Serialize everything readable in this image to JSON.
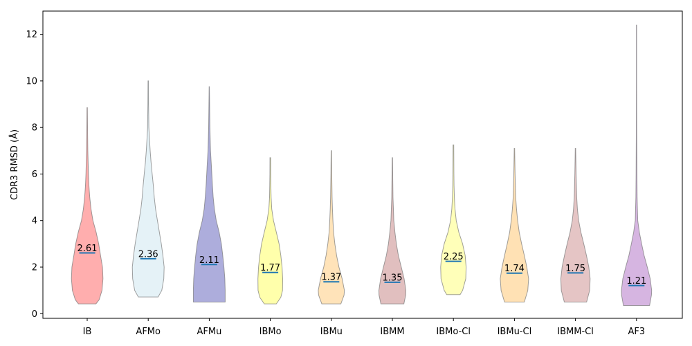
{
  "chart_data": {
    "type": "violin",
    "title": "",
    "xlabel": "",
    "ylabel": "CDR3 RMSD (Å)",
    "ylim": [
      -0.2,
      13.0
    ],
    "yticks": [
      0,
      2,
      4,
      6,
      8,
      10,
      12
    ],
    "grid": false,
    "legend": "none",
    "categories": [
      "IB",
      "AFMo",
      "AFMu",
      "IBMo",
      "IBMu",
      "IBMM",
      "IBMo-Cl",
      "IBMu-Cl",
      "IBMM-Cl",
      "AF3"
    ],
    "series": [
      {
        "category": "IB",
        "color": "#ff6b6b",
        "min": 0.42,
        "max": 8.85,
        "median": 2.61,
        "profile": [
          [
            0.42,
            0.55
          ],
          [
            0.6,
            0.75
          ],
          [
            1.0,
            0.93
          ],
          [
            1.5,
            0.99
          ],
          [
            2.0,
            0.96
          ],
          [
            2.5,
            0.84
          ],
          [
            3.0,
            0.72
          ],
          [
            3.5,
            0.56
          ],
          [
            4.0,
            0.36
          ],
          [
            4.5,
            0.24
          ],
          [
            5.0,
            0.16
          ],
          [
            5.5,
            0.11
          ],
          [
            6.0,
            0.08
          ],
          [
            7.0,
            0.04
          ],
          [
            8.0,
            0.02
          ],
          [
            8.85,
            0.015
          ]
        ]
      },
      {
        "category": "AFMo",
        "color": "#cfe8f0",
        "min": 0.72,
        "max": 10.0,
        "median": 2.36,
        "profile": [
          [
            0.72,
            0.62
          ],
          [
            1.0,
            0.85
          ],
          [
            1.5,
            0.98
          ],
          [
            2.0,
            1.0
          ],
          [
            2.5,
            0.92
          ],
          [
            3.0,
            0.82
          ],
          [
            3.5,
            0.7
          ],
          [
            4.0,
            0.58
          ],
          [
            4.5,
            0.46
          ],
          [
            5.0,
            0.38
          ],
          [
            5.5,
            0.32
          ],
          [
            6.0,
            0.25
          ],
          [
            6.5,
            0.18
          ],
          [
            7.0,
            0.12
          ],
          [
            7.5,
            0.08
          ],
          [
            8.0,
            0.04
          ],
          [
            9.0,
            0.02
          ],
          [
            10.0,
            0.012
          ]
        ]
      },
      {
        "category": "AFMu",
        "color": "#6a6abf",
        "min": 0.5,
        "max": 9.75,
        "median": 2.11,
        "profile": [
          [
            0.5,
            1.0
          ],
          [
            1.0,
            1.0
          ],
          [
            1.5,
            0.98
          ],
          [
            2.0,
            0.92
          ],
          [
            2.5,
            0.85
          ],
          [
            3.0,
            0.76
          ],
          [
            3.5,
            0.62
          ],
          [
            4.0,
            0.44
          ],
          [
            4.5,
            0.32
          ],
          [
            5.0,
            0.25
          ],
          [
            5.5,
            0.2
          ],
          [
            6.0,
            0.16
          ],
          [
            6.5,
            0.12
          ],
          [
            7.0,
            0.08
          ],
          [
            8.0,
            0.04
          ],
          [
            9.0,
            0.02
          ],
          [
            9.75,
            0.01
          ]
        ]
      },
      {
        "category": "IBMo",
        "color": "#ffff66",
        "min": 0.42,
        "max": 6.7,
        "median": 1.77,
        "profile": [
          [
            0.42,
            0.38
          ],
          [
            0.7,
            0.66
          ],
          [
            1.0,
            0.77
          ],
          [
            1.5,
            0.78
          ],
          [
            2.0,
            0.74
          ],
          [
            2.5,
            0.66
          ],
          [
            3.0,
            0.55
          ],
          [
            3.5,
            0.38
          ],
          [
            4.0,
            0.2
          ],
          [
            4.5,
            0.09
          ],
          [
            5.0,
            0.05
          ],
          [
            5.5,
            0.035
          ],
          [
            6.0,
            0.025
          ],
          [
            6.7,
            0.02
          ]
        ]
      },
      {
        "category": "IBMu",
        "color": "#ffcc80",
        "min": 0.42,
        "max": 7.0,
        "median": 1.37,
        "profile": [
          [
            0.42,
            0.6
          ],
          [
            0.8,
            0.8
          ],
          [
            1.0,
            0.82
          ],
          [
            1.5,
            0.68
          ],
          [
            2.0,
            0.48
          ],
          [
            2.5,
            0.33
          ],
          [
            3.0,
            0.22
          ],
          [
            3.5,
            0.14
          ],
          [
            4.0,
            0.1
          ],
          [
            4.5,
            0.07
          ],
          [
            5.0,
            0.05
          ],
          [
            6.0,
            0.025
          ],
          [
            7.0,
            0.015
          ]
        ]
      },
      {
        "category": "IBMM",
        "color": "#c98a8a",
        "min": 0.42,
        "max": 6.7,
        "median": 1.35,
        "profile": [
          [
            0.42,
            0.72
          ],
          [
            0.8,
            0.84
          ],
          [
            1.0,
            0.85
          ],
          [
            1.5,
            0.74
          ],
          [
            2.0,
            0.56
          ],
          [
            2.5,
            0.38
          ],
          [
            3.0,
            0.25
          ],
          [
            3.5,
            0.16
          ],
          [
            4.0,
            0.09
          ],
          [
            5.0,
            0.04
          ],
          [
            6.0,
            0.02
          ],
          [
            6.7,
            0.012
          ]
        ]
      },
      {
        "category": "IBMo-Cl",
        "color": "#ffff80",
        "min": 0.82,
        "max": 7.25,
        "median": 2.25,
        "profile": [
          [
            0.82,
            0.42
          ],
          [
            1.0,
            0.58
          ],
          [
            1.5,
            0.78
          ],
          [
            2.0,
            0.8
          ],
          [
            2.5,
            0.74
          ],
          [
            3.0,
            0.58
          ],
          [
            3.5,
            0.34
          ],
          [
            4.0,
            0.18
          ],
          [
            4.5,
            0.1
          ],
          [
            5.0,
            0.06
          ],
          [
            5.5,
            0.04
          ],
          [
            6.0,
            0.03
          ],
          [
            7.25,
            0.02
          ]
        ]
      },
      {
        "category": "IBMu-Cl",
        "color": "#ffc877",
        "min": 0.5,
        "max": 7.1,
        "median": 1.74,
        "profile": [
          [
            0.5,
            0.62
          ],
          [
            1.0,
            0.84
          ],
          [
            1.5,
            0.89
          ],
          [
            2.0,
            0.78
          ],
          [
            2.5,
            0.62
          ],
          [
            3.0,
            0.45
          ],
          [
            3.5,
            0.3
          ],
          [
            4.0,
            0.2
          ],
          [
            4.5,
            0.13
          ],
          [
            5.0,
            0.08
          ],
          [
            6.0,
            0.04
          ],
          [
            7.1,
            0.015
          ]
        ]
      },
      {
        "category": "IBMM-Cl",
        "color": "#cf9595",
        "min": 0.5,
        "max": 7.1,
        "median": 1.75,
        "profile": [
          [
            0.5,
            0.7
          ],
          [
            1.0,
            0.89
          ],
          [
            1.5,
            0.92
          ],
          [
            2.0,
            0.84
          ],
          [
            2.5,
            0.69
          ],
          [
            3.0,
            0.52
          ],
          [
            3.5,
            0.34
          ],
          [
            4.0,
            0.2
          ],
          [
            4.5,
            0.12
          ],
          [
            5.0,
            0.08
          ],
          [
            6.0,
            0.04
          ],
          [
            7.1,
            0.015
          ]
        ]
      },
      {
        "category": "AF3",
        "color": "#b478c8",
        "min": 0.35,
        "max": 12.4,
        "median": 1.21,
        "profile": [
          [
            0.35,
            0.82
          ],
          [
            0.8,
            0.94
          ],
          [
            1.0,
            0.95
          ],
          [
            1.5,
            0.86
          ],
          [
            2.0,
            0.68
          ],
          [
            2.5,
            0.48
          ],
          [
            3.0,
            0.32
          ],
          [
            3.5,
            0.18
          ],
          [
            4.0,
            0.08
          ],
          [
            5.0,
            0.04
          ],
          [
            6.0,
            0.025
          ],
          [
            8.0,
            0.015
          ],
          [
            10.0,
            0.01
          ],
          [
            12.4,
            0.008
          ]
        ]
      }
    ],
    "median_color": "#1f77b4"
  }
}
